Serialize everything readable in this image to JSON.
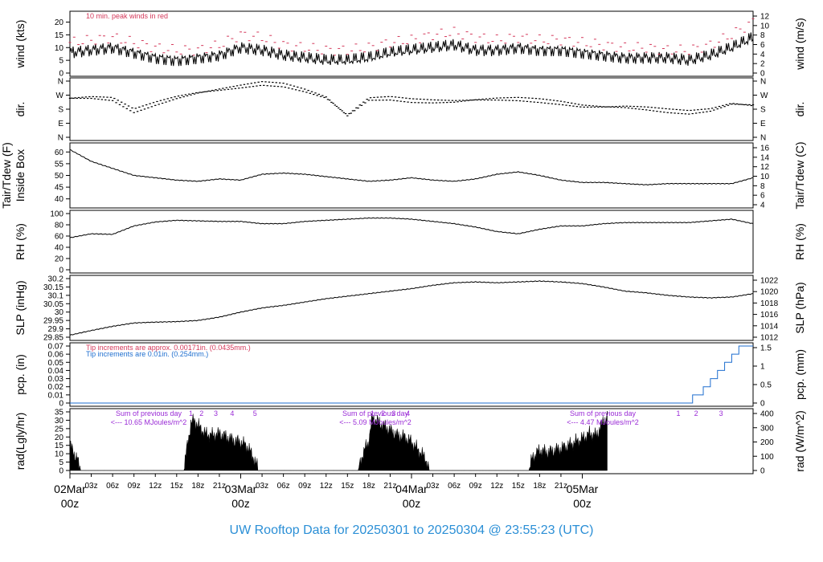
{
  "colors": {
    "frame": "#000000",
    "series": "#000000",
    "peak": "#d4385a",
    "rain_line": "#1e6ecf",
    "title": "#2b8fd6",
    "annotation_purple": "#9a2bd6",
    "date_red": "#d44a6a"
  },
  "title": "UW Rooftop Data for 20250301  to  20250304 @ 23:55:23  (UTC)",
  "x_axis": {
    "hours_ticks": [
      "03z",
      "06z",
      "09z",
      "12z",
      "15z",
      "18z",
      "21z",
      "00z",
      "03z",
      "06z",
      "09z",
      "12z",
      "15z",
      "18z",
      "21z",
      "00z",
      "03z",
      "06z",
      "09z",
      "12z",
      "15z",
      "18z",
      "21z"
    ],
    "date_labels": [
      {
        "date": "02Mar",
        "hour": "00z"
      },
      {
        "date": "03Mar",
        "hour": "00z"
      },
      {
        "date": "04Mar",
        "hour": "00z"
      },
      {
        "date": "05Mar",
        "hour": "00z"
      }
    ]
  },
  "chart_data": [
    {
      "type": "line",
      "ylabel": "wind (kts)",
      "ylabel_right": "wind (m/s)",
      "ylim": [
        0,
        23
      ],
      "yticks": [
        0,
        5,
        10,
        15,
        20
      ],
      "yticks_right": [
        0,
        2,
        4,
        6,
        8,
        10,
        12
      ],
      "annotation": "10 min. peak winds in red",
      "x_hours": [
        0,
        3,
        6,
        9,
        12,
        15,
        18,
        21,
        24,
        27,
        30,
        33,
        36,
        39,
        42,
        45,
        48,
        51,
        54,
        57,
        60,
        63,
        66,
        69,
        72,
        75,
        78,
        81,
        84,
        87,
        90,
        93,
        96
      ],
      "series": [
        {
          "values": [
            8,
            9,
            10,
            8,
            6,
            5,
            6,
            7,
            10,
            9,
            7,
            6,
            5,
            5,
            6,
            8,
            9,
            10,
            11,
            9,
            9,
            10,
            9,
            9,
            8,
            7,
            6,
            6,
            6,
            5,
            7,
            10,
            14
          ]
        },
        {
          "values": [
            12,
            13,
            14,
            12,
            10,
            9,
            9,
            11,
            15,
            14,
            11,
            10,
            9,
            9,
            10,
            12,
            13,
            15,
            16,
            14,
            13,
            14,
            13,
            13,
            12,
            11,
            10,
            10,
            9,
            9,
            11,
            15,
            20
          ]
        }
      ]
    },
    {
      "type": "scatter",
      "ylabel": "dir.",
      "ylabel_right": "dir.",
      "yticks": [
        "N",
        "E",
        "S",
        "W",
        "N"
      ],
      "x_hours": [
        0,
        3,
        6,
        9,
        12,
        15,
        18,
        21,
        24,
        27,
        30,
        33,
        36,
        39,
        42,
        45,
        48,
        51,
        54,
        57,
        60,
        63,
        66,
        69,
        72,
        75,
        78,
        81,
        84,
        87,
        90,
        93,
        96
      ],
      "values_deg": [
        250,
        255,
        245,
        170,
        215,
        255,
        285,
        305,
        325,
        345,
        335,
        300,
        255,
        140,
        245,
        250,
        235,
        230,
        230,
        240,
        245,
        245,
        235,
        220,
        200,
        195,
        195,
        185,
        170,
        160,
        175,
        215,
        205
      ]
    },
    {
      "type": "line",
      "ylabel": "Tair/Tdew (F)\nInside Box",
      "ylabel_right": "Tair/Tdew (C)",
      "ylim": [
        37.5,
        62.5
      ],
      "yticks": [
        40,
        45,
        50,
        55,
        60
      ],
      "yticks_right": [
        4,
        6,
        8,
        10,
        12,
        14,
        16
      ],
      "x_hours": [
        0,
        3,
        6,
        9,
        12,
        15,
        18,
        21,
        24,
        27,
        30,
        33,
        36,
        39,
        42,
        45,
        48,
        51,
        54,
        57,
        60,
        63,
        66,
        69,
        72,
        75,
        78,
        81,
        84,
        87,
        90,
        93,
        96
      ],
      "values": [
        61,
        56,
        53,
        50,
        49,
        48,
        47.5,
        48.5,
        48,
        50.5,
        51,
        50.5,
        49.5,
        48.5,
        47.5,
        48,
        49,
        48,
        47.5,
        48.5,
        50.5,
        51.5,
        50,
        48,
        47,
        47,
        46.5,
        46,
        46.5,
        46.5,
        46.5,
        46.5,
        49
      ]
    },
    {
      "type": "line",
      "ylabel": "RH (%)",
      "ylabel_right": "RH (%)",
      "ylim": [
        0,
        100
      ],
      "yticks": [
        0,
        20,
        40,
        60,
        80,
        100
      ],
      "x_hours": [
        0,
        3,
        6,
        9,
        12,
        15,
        18,
        21,
        24,
        27,
        30,
        33,
        36,
        39,
        42,
        45,
        48,
        51,
        54,
        57,
        60,
        63,
        66,
        69,
        72,
        75,
        78,
        81,
        84,
        87,
        90,
        93,
        96
      ],
      "values": [
        57,
        64,
        63,
        78,
        85,
        88,
        87,
        86,
        86,
        82,
        82,
        86,
        88,
        90,
        92,
        92,
        90,
        86,
        82,
        76,
        68,
        64,
        72,
        78,
        78,
        82,
        84,
        84,
        84,
        84,
        87,
        90,
        82
      ]
    },
    {
      "type": "line",
      "ylabel": "SLP (inHg)",
      "ylabel_right": "SLP (hPa)",
      "ylim": [
        29.85,
        30.2
      ],
      "yticks": [
        29.85,
        29.9,
        29.95,
        30.0,
        30.05,
        30.1,
        30.15,
        30.2
      ],
      "yticks_right": [
        1012,
        1014,
        1016,
        1018,
        1020,
        1022
      ],
      "x_hours": [
        0,
        3,
        6,
        9,
        12,
        15,
        18,
        21,
        24,
        27,
        30,
        33,
        36,
        39,
        42,
        45,
        48,
        51,
        54,
        57,
        60,
        63,
        66,
        69,
        72,
        75,
        78,
        81,
        84,
        87,
        90,
        93,
        96
      ],
      "values": [
        29.862,
        29.89,
        29.915,
        29.935,
        29.94,
        29.943,
        29.95,
        29.97,
        30.0,
        30.025,
        30.04,
        30.06,
        30.08,
        30.095,
        30.11,
        30.125,
        30.14,
        30.16,
        30.175,
        30.18,
        30.175,
        30.18,
        30.185,
        30.18,
        30.17,
        30.15,
        30.125,
        30.115,
        30.1,
        30.09,
        30.085,
        30.09,
        30.11
      ]
    },
    {
      "type": "line",
      "ylabel": "pcp. (in)",
      "ylabel_right": "pcp. (mm)",
      "ylim": [
        0,
        0.07
      ],
      "yticks": [
        0,
        0.01,
        0.02,
        0.03,
        0.04,
        0.05,
        0.06,
        0.07
      ],
      "yticks_right": [
        0,
        0.5,
        1,
        1.5
      ],
      "annotations": [
        "Tip increments are approx. 0.00171in. (0.0435mm.)",
        "Tip increments are 0.01in. (0.254mm.)"
      ],
      "x_hours": [
        0,
        86,
        87.5,
        89,
        90,
        91,
        92,
        93,
        94,
        96
      ],
      "values": [
        0,
        0,
        0.01,
        0.02,
        0.03,
        0.04,
        0.05,
        0.06,
        0.07,
        0.07
      ]
    },
    {
      "type": "area",
      "ylabel": "rad(Lgly/hr)",
      "ylabel_right": "rad (W/m^2)",
      "ylim": [
        0,
        35
      ],
      "yticks": [
        0,
        5,
        10,
        15,
        20,
        25,
        30,
        35
      ],
      "yticks_right": [
        0,
        100,
        200,
        300,
        400
      ],
      "day_sums": [
        {
          "label": "Sum of previous day",
          "value": "<--- 10.65 MJoules/m^2"
        },
        {
          "label": "Sum of previous day",
          "value": "<--- 5.09 MJoules/m^2"
        },
        {
          "label": "Sum of previous day",
          "value": "<--- 4.47 MJoules/m^2"
        }
      ],
      "hour_markers": [
        {
          "label": "1",
          "hour": 17
        },
        {
          "label": "2",
          "hour": 18.5
        },
        {
          "label": "3",
          "hour": 20.5
        },
        {
          "label": "4",
          "hour": 22.8
        },
        {
          "label": "5",
          "hour": 26
        },
        {
          "label": "1",
          "hour": 42.5
        },
        {
          "label": "2",
          "hour": 44
        },
        {
          "label": "3",
          "hour": 45.5
        },
        {
          "label": "4",
          "hour": 47.5
        },
        {
          "label": "1",
          "hour": 85.5
        },
        {
          "label": "2",
          "hour": 88
        },
        {
          "label": "3",
          "hour": 91.5
        }
      ],
      "x_hours": [
        0,
        1,
        1.5,
        16,
        16.5,
        17,
        17.5,
        18,
        19,
        20,
        21,
        22,
        23,
        24,
        25,
        26,
        26.5,
        40.5,
        41,
        42,
        42.5,
        43,
        44,
        45,
        46,
        47,
        48,
        49,
        50,
        50.5,
        64.5,
        65,
        66,
        67,
        68,
        69,
        70,
        71,
        72,
        73,
        74,
        75,
        75.5
      ],
      "values": [
        15,
        7,
        0,
        0,
        15,
        28,
        30,
        27,
        22,
        21,
        22,
        20,
        18,
        17,
        14,
        6,
        0,
        0,
        8,
        18,
        32,
        30,
        27,
        24,
        21,
        20,
        17,
        12,
        7,
        0,
        0,
        8,
        12,
        11,
        12,
        13,
        15,
        17,
        19,
        22,
        21,
        30,
        32
      ]
    }
  ]
}
